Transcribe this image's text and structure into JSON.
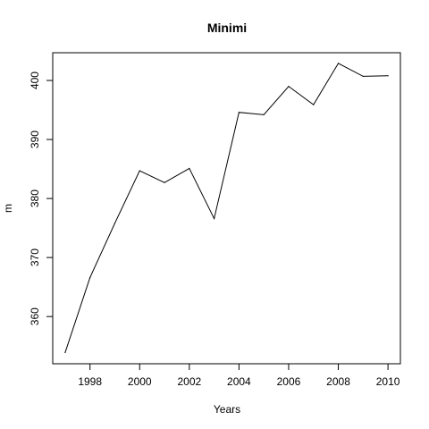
{
  "chart_data": {
    "type": "line",
    "title": "Minimi",
    "xlabel": "Years",
    "ylabel": "m",
    "x": [
      1997,
      1998,
      1999,
      2000,
      2001,
      2002,
      2003,
      2004,
      2005,
      2006,
      2007,
      2008,
      2009,
      2010
    ],
    "series": [
      {
        "values": [
          353.9,
          366.6,
          375.8,
          384.7,
          382.7,
          385.1,
          376.6,
          394.6,
          394.2,
          399.0,
          395.9,
          402.9,
          400.7,
          400.8
        ]
      }
    ],
    "xlim": [
      1996.5,
      2010.5
    ],
    "ylim": [
      352.0,
      404.7
    ],
    "x_ticks": [
      1998,
      2000,
      2002,
      2004,
      2006,
      2008,
      2010
    ],
    "y_ticks": [
      360,
      370,
      380,
      390,
      400
    ],
    "x_tick_labels": [
      "1998",
      "2000",
      "2002",
      "2004",
      "2006",
      "2008",
      "2010"
    ],
    "y_tick_labels": [
      "360",
      "370",
      "380",
      "390",
      "400"
    ],
    "grid": false,
    "line_color": "#000000"
  }
}
